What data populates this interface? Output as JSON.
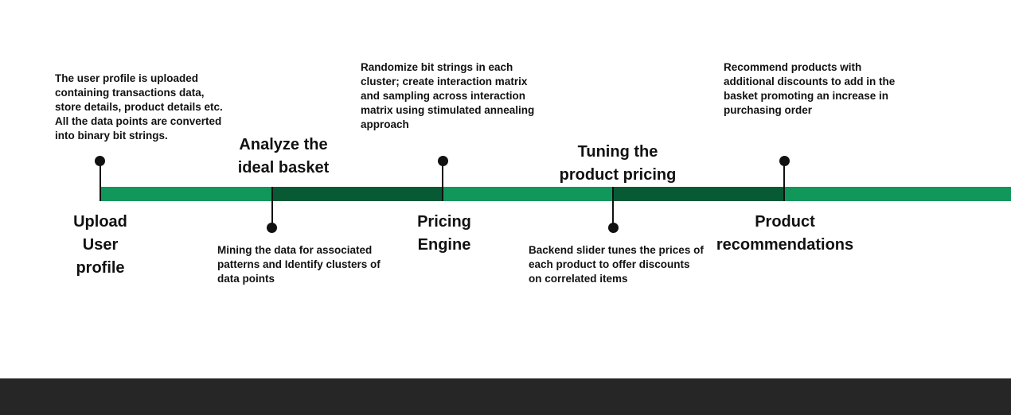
{
  "colors": {
    "bar_light": "#11975a",
    "bar_dark": "#075a34",
    "marker": "#111111",
    "footer": "#262626"
  },
  "stages": [
    {
      "title": "Upload\nUser\nprofile",
      "description": "The user profile is uploaded\ncontaining transactions data,\nstore details, product details etc.\nAll the data points are converted\ninto binary bit strings."
    },
    {
      "title": "Analyze the\nideal basket",
      "description": "Mining the data for associated\npatterns and Identify clusters of\ndata points"
    },
    {
      "title": "Pricing\nEngine",
      "description": "Randomize bit strings in each\ncluster; create interaction matrix\nand sampling across interaction\nmatrix using stimulated annealing\napproach"
    },
    {
      "title": "Tuning the\nproduct pricing",
      "description": "Backend slider tunes the prices of\neach product to offer discounts\non correlated  items"
    },
    {
      "title": "Product\nrecommendations",
      "description": "Recommend products with\nadditional discounts to add in the\nbasket promoting an increase in\npurchasing order"
    }
  ]
}
